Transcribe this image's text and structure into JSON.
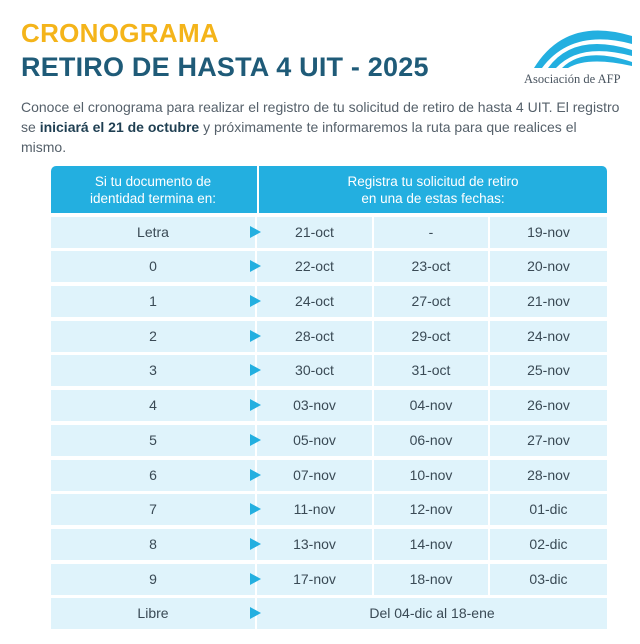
{
  "header": {
    "title": "CRONOGRAMA",
    "subtitle": "RETIRO DE HASTA 4 UIT - 2025"
  },
  "logo": {
    "text": "Asociación de AFP",
    "icon": "arc-logo-icon",
    "color": "#23afe0"
  },
  "intro": {
    "part1": "Conoce el cronograma para realizar el registro de tu solicitud de retiro de hasta 4 UIT. El registro se ",
    "bold": "iniciará el 21 de octubre",
    "part2": " y próximamente te informaremos la ruta para que realices el mismo."
  },
  "table": {
    "header_left_line1": "Si tu documento de",
    "header_left_line2": "identidad termina en:",
    "header_right_line1": "Registra tu solicitud de retiro",
    "header_right_line2": "en una de estas fechas:",
    "rows": [
      {
        "label": "Letra",
        "d1": "21-oct",
        "d2": "-",
        "d3": "19-nov"
      },
      {
        "label": "0",
        "d1": "22-oct",
        "d2": "23-oct",
        "d3": "20-nov"
      },
      {
        "label": "1",
        "d1": "24-oct",
        "d2": "27-oct",
        "d3": "21-nov"
      },
      {
        "label": "2",
        "d1": "28-oct",
        "d2": "29-oct",
        "d3": "24-nov"
      },
      {
        "label": "3",
        "d1": "30-oct",
        "d2": "31-oct",
        "d3": "25-nov"
      },
      {
        "label": "4",
        "d1": "03-nov",
        "d2": "04-nov",
        "d3": "26-nov"
      },
      {
        "label": "5",
        "d1": "05-nov",
        "d2": "06-nov",
        "d3": "27-nov"
      },
      {
        "label": "6",
        "d1": "07-nov",
        "d2": "10-nov",
        "d3": "28-nov"
      },
      {
        "label": "7",
        "d1": "11-nov",
        "d2": "12-nov",
        "d3": "01-dic"
      },
      {
        "label": "8",
        "d1": "13-nov",
        "d2": "14-nov",
        "d3": "02-dic"
      },
      {
        "label": "9",
        "d1": "17-nov",
        "d2": "18-nov",
        "d3": "03-dic"
      }
    ],
    "last_row": {
      "label": "Libre",
      "range": "Del 04-dic al 18-ene"
    }
  },
  "colors": {
    "title": "#f4b41a",
    "subtitle": "#1f5b78",
    "accent": "#23afe0",
    "cell_bg": "#dff3fb"
  }
}
